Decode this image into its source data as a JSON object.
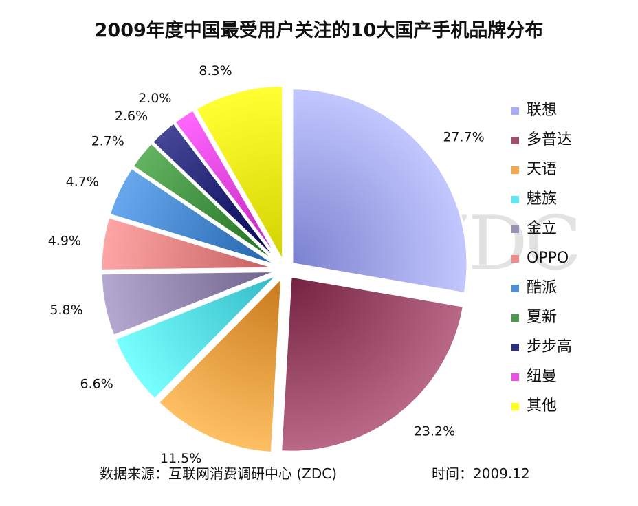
{
  "chart_data": {
    "type": "pie",
    "title": "2009年度中国最受用户关注的10大国产手机品牌分布",
    "categories": [
      "联想",
      "多普达",
      "天语",
      "魅族",
      "金立",
      "OPPO",
      "酷派",
      "夏新",
      "步步高",
      "纽曼",
      "其他"
    ],
    "values": [
      27.7,
      23.2,
      11.5,
      6.6,
      5.8,
      4.9,
      4.7,
      2.7,
      2.6,
      2.0,
      8.3
    ],
    "value_labels": [
      "27.7%",
      "23.2%",
      "11.5%",
      "6.6%",
      "5.8%",
      "4.9%",
      "4.7%",
      "2.7%",
      "2.6%",
      "2.0%",
      "8.3%"
    ],
    "colors": [
      "#a9aefc",
      "#a0506e",
      "#f5a64a",
      "#5fe6f3",
      "#9b8fb8",
      "#f08c8c",
      "#4f8fd6",
      "#4a9a4a",
      "#2e2e7e",
      "#ee4ee8",
      "#ffff1a"
    ],
    "legend_position": "right",
    "exploded": true
  },
  "watermark": "ZDC",
  "footer": {
    "source": "数据来源：互联网消费调研中心 (ZDC)",
    "time": "时间：2009.12"
  }
}
